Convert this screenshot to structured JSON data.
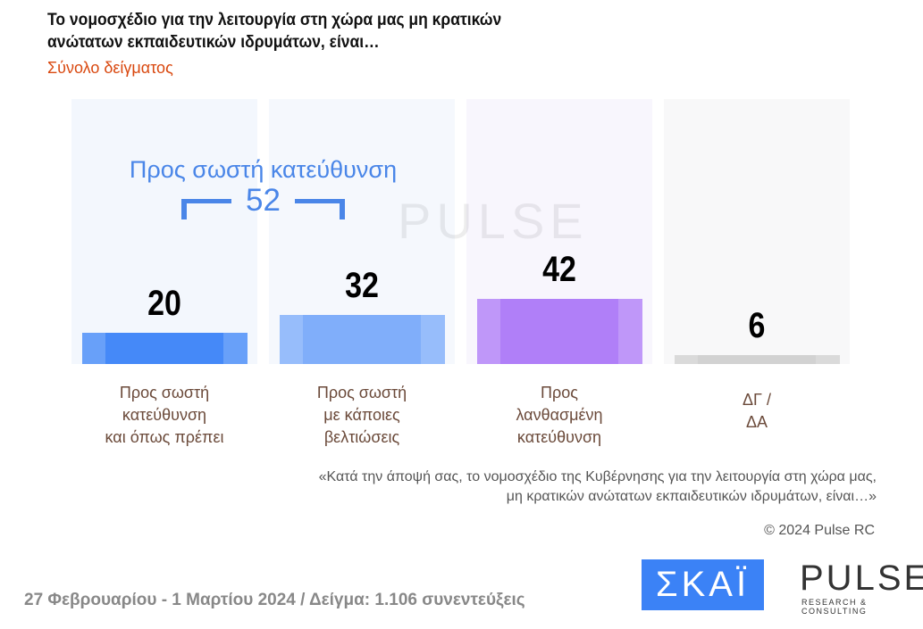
{
  "title": [
    "Το νομοσχέδιο για την λειτουργία στη χώρα μας μη κρατικών",
    "ανώτατων εκπαιδευτικών ιδρυμάτων, είναι…"
  ],
  "subtitle": "Σύνολο δείγματος",
  "group": {
    "label": "Προς σωστή κατεύθυνση",
    "value": "52"
  },
  "chart_data": {
    "type": "bar",
    "categories": [
      "Προς σωστή κατεύθυνση και όπως πρέπει",
      "Προς σωστή με κάποιες βελτιώσεις",
      "Προς λανθασμένη κατεύθυνση",
      "ΔΓ / ΔΑ"
    ],
    "category_lines": [
      [
        "Προς σωστή",
        "κατεύθυνση",
        "και όπως πρέπει"
      ],
      [
        "Προς σωστή",
        "με κάποιες",
        "βελτιώσεις"
      ],
      [
        "Προς",
        "λανθασμένη",
        "κατεύθυνση"
      ],
      [
        "ΔΓ /",
        "ΔΑ"
      ]
    ],
    "values": [
      20,
      32,
      42,
      6
    ],
    "colors": [
      "#4589f8",
      "#80aefa",
      "#b07ff8",
      "#d2d2d2"
    ],
    "bg_colors": [
      "#f3f7fd",
      "#f5f8fd",
      "#f8f6fd",
      "#f8f8f9"
    ],
    "ylim": [
      0,
      100
    ]
  },
  "question": [
    "«Κατά την άποψή σας, το νομοσχέδιο της Κυβέρνησης για την λειτουργία στη χώρα μας,",
    "μη κρατικών ανώτατων εκπαιδευτικών ιδρυμάτων, είναι…»"
  ],
  "copyright": "© 2024 Pulse RC",
  "footer": "27 Φεβρουαρίου - 1 Μαρτίου 2024  /  Δείγμα:  1.106 συνεντεύξεις",
  "logos": {
    "skai": "ΣΚΑΪ",
    "pulse": "PULSE",
    "pulse_tag": "RESEARCH & CONSULTING"
  }
}
